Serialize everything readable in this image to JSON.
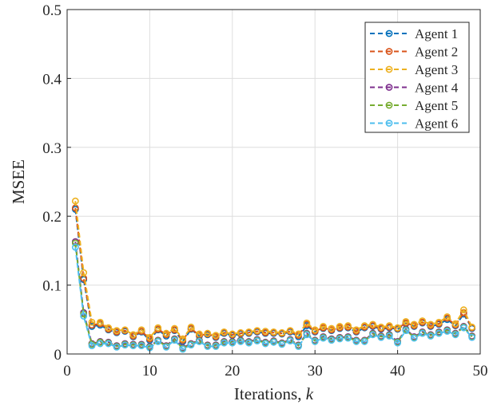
{
  "chart_data": {
    "type": "line",
    "title": "",
    "xlabel": "Iterations, ",
    "xlabel_italic": "k",
    "ylabel": "MSEE",
    "xlim": [
      0,
      50
    ],
    "ylim": [
      0,
      0.5
    ],
    "xticks": [
      0,
      10,
      20,
      30,
      40,
      50
    ],
    "yticks": [
      0,
      0.1,
      0.2,
      0.3,
      0.4,
      0.5
    ],
    "xtick_labels": [
      "0",
      "10",
      "20",
      "30",
      "40",
      "50"
    ],
    "ytick_labels": [
      "0",
      "0.1",
      "0.2",
      "0.3",
      "0.4",
      "0.5"
    ],
    "grid": true,
    "legend_position": "top-right",
    "x": [
      1,
      2,
      3,
      4,
      5,
      6,
      7,
      8,
      9,
      10,
      11,
      12,
      13,
      14,
      15,
      16,
      17,
      18,
      19,
      20,
      21,
      22,
      23,
      24,
      25,
      26,
      27,
      28,
      29,
      30,
      31,
      32,
      33,
      34,
      35,
      36,
      37,
      38,
      39,
      40,
      41,
      42,
      43,
      44,
      45,
      46,
      47,
      48,
      49
    ],
    "series": [
      {
        "name": "Agent 1",
        "color": "#0072BD",
        "values": [
          0.21,
          0.108,
          0.04,
          0.042,
          0.035,
          0.031,
          0.033,
          0.025,
          0.032,
          0.02,
          0.035,
          0.026,
          0.034,
          0.018,
          0.036,
          0.026,
          0.028,
          0.024,
          0.03,
          0.027,
          0.029,
          0.03,
          0.032,
          0.03,
          0.03,
          0.029,
          0.032,
          0.025,
          0.041,
          0.032,
          0.037,
          0.034,
          0.037,
          0.038,
          0.032,
          0.038,
          0.04,
          0.036,
          0.038,
          0.036,
          0.044,
          0.04,
          0.045,
          0.04,
          0.043,
          0.05,
          0.041,
          0.058,
          0.037
        ]
      },
      {
        "name": "Agent 2",
        "color": "#D95319",
        "values": [
          0.212,
          0.11,
          0.042,
          0.044,
          0.036,
          0.032,
          0.034,
          0.026,
          0.033,
          0.022,
          0.036,
          0.028,
          0.035,
          0.02,
          0.037,
          0.027,
          0.029,
          0.025,
          0.031,
          0.028,
          0.03,
          0.031,
          0.033,
          0.031,
          0.031,
          0.03,
          0.033,
          0.027,
          0.043,
          0.033,
          0.038,
          0.035,
          0.038,
          0.039,
          0.033,
          0.039,
          0.041,
          0.037,
          0.039,
          0.037,
          0.045,
          0.041,
          0.046,
          0.041,
          0.044,
          0.052,
          0.042,
          0.06,
          0.038
        ]
      },
      {
        "name": "Agent 3",
        "color": "#EDB120",
        "values": [
          0.222,
          0.118,
          0.046,
          0.046,
          0.038,
          0.034,
          0.035,
          0.028,
          0.035,
          0.024,
          0.038,
          0.03,
          0.037,
          0.022,
          0.039,
          0.029,
          0.03,
          0.027,
          0.032,
          0.029,
          0.031,
          0.032,
          0.034,
          0.033,
          0.032,
          0.031,
          0.034,
          0.029,
          0.045,
          0.035,
          0.04,
          0.037,
          0.04,
          0.041,
          0.035,
          0.041,
          0.043,
          0.039,
          0.041,
          0.038,
          0.047,
          0.043,
          0.048,
          0.043,
          0.046,
          0.054,
          0.044,
          0.064,
          0.039
        ]
      },
      {
        "name": "Agent 4",
        "color": "#7E2F8E",
        "values": [
          0.163,
          0.06,
          0.015,
          0.018,
          0.017,
          0.012,
          0.015,
          0.014,
          0.014,
          0.011,
          0.02,
          0.012,
          0.022,
          0.009,
          0.015,
          0.02,
          0.013,
          0.013,
          0.018,
          0.018,
          0.02,
          0.018,
          0.021,
          0.017,
          0.019,
          0.016,
          0.021,
          0.013,
          0.03,
          0.02,
          0.025,
          0.022,
          0.024,
          0.025,
          0.02,
          0.02,
          0.03,
          0.026,
          0.028,
          0.018,
          0.036,
          0.025,
          0.032,
          0.028,
          0.032,
          0.035,
          0.03,
          0.04,
          0.026
        ]
      },
      {
        "name": "Agent 5",
        "color": "#77AC30",
        "values": [
          0.161,
          0.058,
          0.014,
          0.017,
          0.016,
          0.011,
          0.014,
          0.013,
          0.013,
          0.01,
          0.019,
          0.011,
          0.021,
          0.008,
          0.014,
          0.019,
          0.012,
          0.012,
          0.017,
          0.017,
          0.019,
          0.017,
          0.02,
          0.016,
          0.018,
          0.015,
          0.02,
          0.012,
          0.029,
          0.019,
          0.024,
          0.021,
          0.023,
          0.024,
          0.019,
          0.019,
          0.029,
          0.025,
          0.027,
          0.017,
          0.035,
          0.024,
          0.031,
          0.027,
          0.031,
          0.034,
          0.029,
          0.039,
          0.025
        ]
      },
      {
        "name": "Agent 6",
        "color": "#4DBEEE",
        "values": [
          0.155,
          0.055,
          0.012,
          0.015,
          0.015,
          0.01,
          0.013,
          0.012,
          0.012,
          0.009,
          0.018,
          0.01,
          0.02,
          0.007,
          0.013,
          0.018,
          0.011,
          0.011,
          0.016,
          0.016,
          0.018,
          0.016,
          0.019,
          0.015,
          0.017,
          0.014,
          0.019,
          0.011,
          0.028,
          0.018,
          0.023,
          0.02,
          0.022,
          0.023,
          0.018,
          0.018,
          0.028,
          0.024,
          0.026,
          0.016,
          0.034,
          0.023,
          0.03,
          0.026,
          0.03,
          0.033,
          0.028,
          0.038,
          0.024
        ]
      }
    ]
  }
}
